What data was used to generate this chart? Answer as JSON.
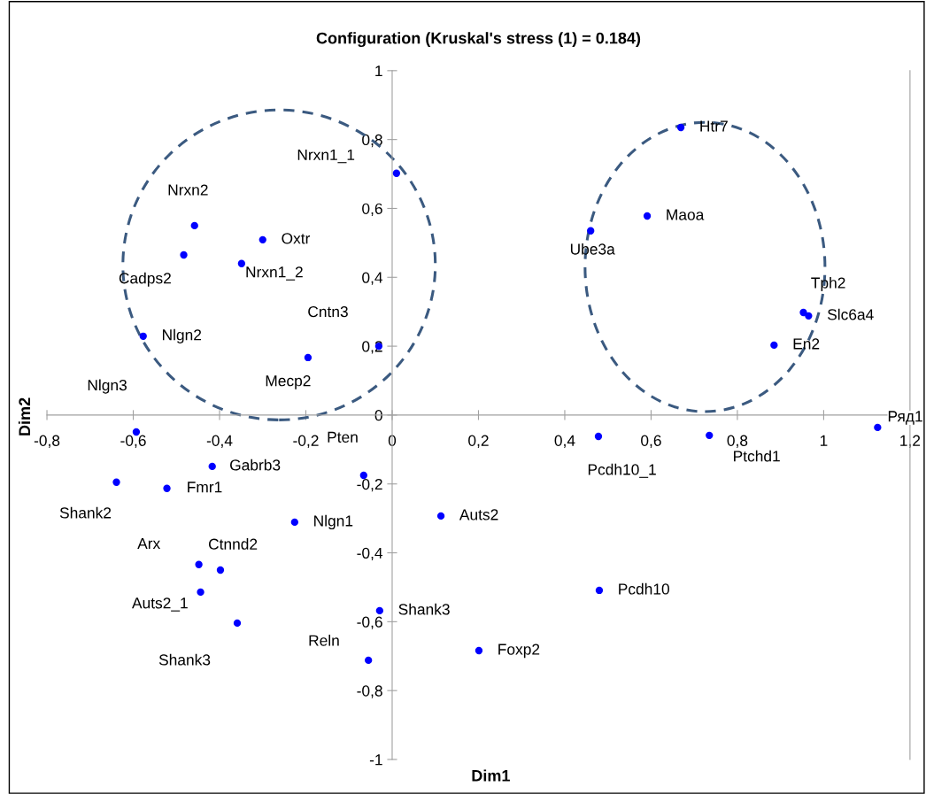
{
  "chart_data": {
    "type": "scatter",
    "title": "Configuration (Kruskal's stress (1) = 0.184)",
    "xlabel": "Dim1",
    "ylabel": "Dim2",
    "x": [
      0.01,
      -0.458,
      -0.3,
      -0.483,
      -0.349,
      -0.577,
      -0.031,
      -0.195,
      -0.593,
      0.669,
      0.591,
      0.46,
      0.953,
      0.965,
      0.885,
      1.125,
      0.478,
      0.735,
      -0.417,
      -0.639,
      -0.522,
      -0.066,
      -0.226,
      0.113,
      -0.448,
      -0.398,
      -0.444,
      -0.359,
      -0.029,
      0.48,
      0.201,
      -0.055
    ],
    "values": [
      0.702,
      0.55,
      0.509,
      0.465,
      0.44,
      0.229,
      0.2,
      0.167,
      -0.049,
      0.835,
      0.578,
      0.535,
      0.298,
      0.288,
      0.203,
      -0.036,
      -0.062,
      -0.059,
      -0.149,
      -0.195,
      -0.213,
      -0.175,
      -0.311,
      -0.293,
      -0.434,
      -0.45,
      -0.514,
      -0.604,
      -0.568,
      -0.509,
      -0.684,
      -0.712
    ],
    "color": "#0000ff",
    "marker": "circle",
    "grid": false,
    "xlim": [
      -0.8,
      1.2
    ],
    "ylim": [
      -1,
      1
    ],
    "xticks": [
      {
        "value": -0.8,
        "label": "-0,8"
      },
      {
        "value": -0.6,
        "label": "-0,6"
      },
      {
        "value": -0.4,
        "label": "-0,4"
      },
      {
        "value": -0.2,
        "label": "-0,2"
      },
      0,
      {
        "value": 0.2,
        "label": "0,2"
      },
      {
        "value": 0.4,
        "label": "0,4"
      },
      {
        "value": 0.6,
        "label": "0,6"
      },
      {
        "value": 0.8,
        "label": "0,8"
      },
      1,
      {
        "value": 1.2,
        "label": "1,2"
      }
    ],
    "yticks": [
      -1,
      {
        "value": -0.8,
        "label": "-0,8"
      },
      {
        "value": -0.6,
        "label": "-0,6"
      },
      {
        "value": -0.4,
        "label": "-0,4"
      },
      {
        "value": -0.2,
        "label": "-0,2"
      },
      0,
      {
        "value": 0.2,
        "label": "0,2"
      },
      {
        "value": 0.4,
        "label": "0,4"
      },
      {
        "value": 0.6,
        "label": "0,6"
      },
      {
        "value": 0.8,
        "label": "0,8"
      },
      1
    ],
    "annotations": [
      {
        "text": "Nrxn1_1",
        "x": 0.01,
        "y": 0.702
      },
      {
        "text": "Nrxn2",
        "x": -0.458,
        "y": 0.55
      },
      {
        "text": "Oxtr",
        "x": -0.3,
        "y": 0.509
      },
      {
        "text": "Cadps2",
        "x": -0.483,
        "y": 0.465
      },
      {
        "text": "Nrxn1_2",
        "x": -0.349,
        "y": 0.44
      },
      {
        "text": "Nlgn2",
        "x": -0.577,
        "y": 0.229
      },
      {
        "text": "Cntn3",
        "x": -0.031,
        "y": 0.2
      },
      {
        "text": "Mecp2",
        "x": -0.195,
        "y": 0.167
      },
      {
        "text": "Nlgn3",
        "x": -0.593,
        "y": -0.049
      },
      {
        "text": "Htr7",
        "x": 0.669,
        "y": 0.835
      },
      {
        "text": "Maoa",
        "x": 0.591,
        "y": 0.578
      },
      {
        "text": "Ube3a",
        "x": 0.46,
        "y": 0.535
      },
      {
        "text": "Tph2",
        "x": 0.953,
        "y": 0.298
      },
      {
        "text": "Slc6a4",
        "x": 0.965,
        "y": 0.288
      },
      {
        "text": "En2",
        "x": 0.885,
        "y": 0.203
      },
      {
        "text": "Ряд1",
        "x": 1.125,
        "y": -0.036
      },
      {
        "text": "Pcdh10_1",
        "x": 0.478,
        "y": -0.062
      },
      {
        "text": "Ptchd1",
        "x": 0.735,
        "y": -0.059
      },
      {
        "text": "Gabrb3",
        "x": -0.417,
        "y": -0.149
      },
      {
        "text": "Shank2",
        "x": -0.639,
        "y": -0.195
      },
      {
        "text": "Fmr1",
        "x": -0.522,
        "y": -0.213
      },
      {
        "text": "Pten",
        "x": -0.066,
        "y": -0.175
      },
      {
        "text": "Nlgn1",
        "x": -0.226,
        "y": -0.311
      },
      {
        "text": "Auts2",
        "x": 0.113,
        "y": -0.293
      },
      {
        "text": "Arx",
        "x": -0.448,
        "y": -0.434
      },
      {
        "text": "Ctnnd2",
        "x": -0.398,
        "y": -0.45
      },
      {
        "text": "Auts2_1",
        "x": -0.444,
        "y": -0.514
      },
      {
        "text": "Shank3",
        "x": -0.359,
        "y": -0.604
      },
      {
        "text": "Shank3",
        "x": -0.029,
        "y": -0.568
      },
      {
        "text": "Pcdh10",
        "x": 0.48,
        "y": -0.509
      },
      {
        "text": "Foxp2",
        "x": 0.201,
        "y": -0.684
      },
      {
        "text": "Reln",
        "x": -0.055,
        "y": -0.712
      }
    ]
  }
}
